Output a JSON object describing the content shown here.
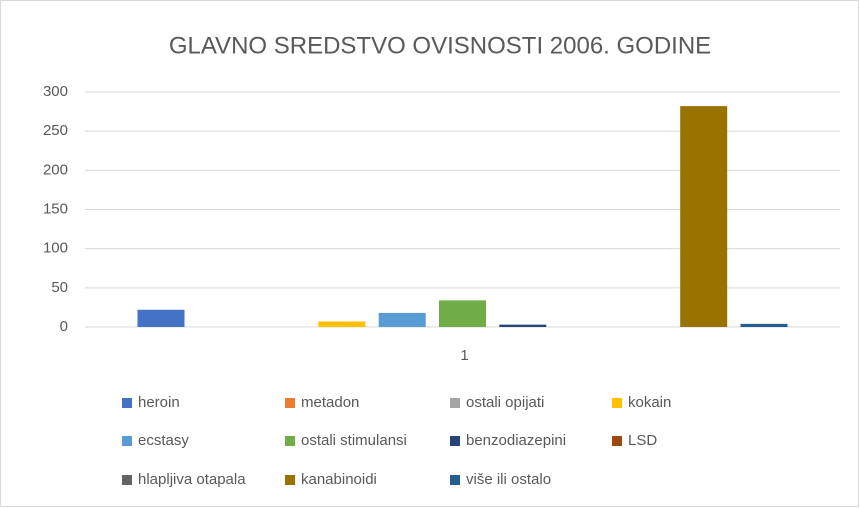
{
  "chart_data": {
    "type": "bar",
    "title": "GLAVNO SREDSTVO OVISNOSTI 2006. GODINE",
    "categories": [
      "1"
    ],
    "series": [
      {
        "name": "heroin",
        "color": "#4472c4",
        "values": [
          22
        ]
      },
      {
        "name": "metadon",
        "color": "#ed7d31",
        "values": [
          0
        ]
      },
      {
        "name": "ostali opijati",
        "color": "#a5a5a5",
        "values": [
          0
        ]
      },
      {
        "name": "kokain",
        "color": "#ffc000",
        "values": [
          7
        ]
      },
      {
        "name": "ecstasy",
        "color": "#5b9bd5",
        "values": [
          18
        ]
      },
      {
        "name": "ostali stimulansi",
        "color": "#70ad47",
        "values": [
          34
        ]
      },
      {
        "name": "benzodiazepini",
        "color": "#264478",
        "values": [
          3
        ]
      },
      {
        "name": "LSD",
        "color": "#9e480e",
        "values": [
          0
        ]
      },
      {
        "name": "hlapljiva otapala",
        "color": "#636363",
        "values": [
          0
        ]
      },
      {
        "name": "kanabinoidi",
        "color": "#997300",
        "values": [
          282
        ]
      },
      {
        "name": "više ili ostalo",
        "color": "#255e91",
        "values": [
          4
        ]
      }
    ],
    "ylim": [
      0,
      300
    ],
    "yticks": [
      0,
      50,
      100,
      150,
      200,
      250,
      300
    ],
    "grid": true,
    "legend": "bottom"
  }
}
